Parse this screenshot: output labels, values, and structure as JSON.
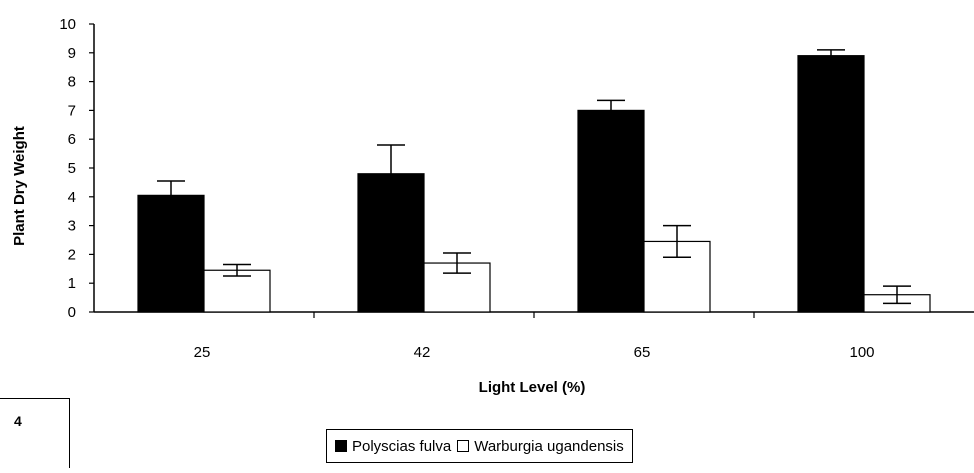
{
  "panel_label": "4",
  "chart_data": {
    "type": "bar",
    "ylabel": "Plant Dry Weight",
    "xlabel": "Light Level (%)",
    "ylim": [
      0,
      10
    ],
    "yticks": [
      0,
      1,
      2,
      3,
      4,
      5,
      6,
      7,
      8,
      9,
      10
    ],
    "categories": [
      "25",
      "42",
      "65",
      "100"
    ],
    "grid": false,
    "legend_position": "bottom",
    "error_bars": true,
    "series": [
      {
        "name": "Polyscias fulva",
        "color": "#000000",
        "values": [
          4.05,
          4.8,
          7.0,
          8.9
        ],
        "errors": [
          0.5,
          1.0,
          0.35,
          0.2
        ]
      },
      {
        "name": "Warburgia ugandensis",
        "color": "#ffffff",
        "values": [
          1.45,
          1.7,
          2.45,
          0.6
        ],
        "errors": [
          0.2,
          0.35,
          0.55,
          0.3
        ]
      }
    ]
  }
}
